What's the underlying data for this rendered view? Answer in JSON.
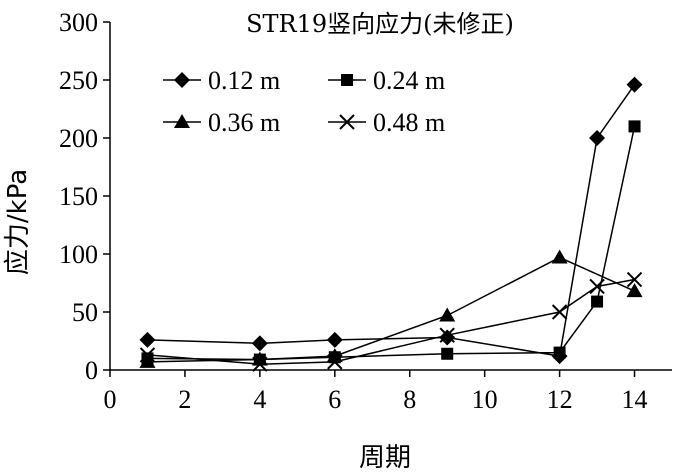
{
  "chart_data": {
    "type": "line",
    "title": "STR19竖向应力(未修正)",
    "xlabel": "周期",
    "ylabel": "应力/kPa",
    "xlim": [
      0,
      15
    ],
    "ylim": [
      0,
      300
    ],
    "xticks": [
      0,
      2,
      4,
      6,
      8,
      10,
      12,
      14
    ],
    "yticks": [
      0,
      50,
      100,
      150,
      200,
      250,
      300
    ],
    "grid": false,
    "legend_position": "top-left",
    "series": [
      {
        "name": "0.12 m",
        "marker": "diamond",
        "color": "#000000",
        "x": [
          1,
          4,
          6,
          9,
          12,
          13,
          14
        ],
        "y": [
          26,
          23,
          26,
          28,
          12,
          200,
          246
        ]
      },
      {
        "name": "0.24 m",
        "marker": "square",
        "color": "#000000",
        "x": [
          1,
          4,
          6,
          9,
          12,
          13,
          14
        ],
        "y": [
          10,
          9,
          11,
          14,
          15,
          59,
          210
        ]
      },
      {
        "name": "0.36 m",
        "marker": "triangle",
        "color": "#000000",
        "x": [
          1,
          4,
          6,
          9,
          12,
          14
        ],
        "y": [
          7,
          9,
          12,
          47,
          97,
          68
        ]
      },
      {
        "name": "0.48 m",
        "marker": "x",
        "color": "#000000",
        "x": [
          1,
          4,
          6,
          9,
          12,
          13,
          14
        ],
        "y": [
          13,
          5,
          7,
          30,
          50,
          72,
          78
        ]
      }
    ]
  }
}
